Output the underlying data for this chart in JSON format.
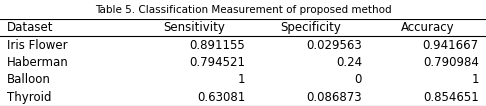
{
  "title": "Table 5. Classification Measurement of proposed method",
  "columns": [
    "Dataset",
    "Sensitivity",
    "Specificity",
    "Accuracy"
  ],
  "rows": [
    [
      "Iris Flower",
      "0.891155",
      "0.029563",
      "0.941667"
    ],
    [
      "Haberman",
      "0.794521",
      "0.24",
      "0.790984"
    ],
    [
      "Balloon",
      "1",
      "0",
      "1"
    ],
    [
      "Thyroid",
      "0.63081",
      "0.086873",
      "0.854651"
    ]
  ],
  "bg_color": "#ffffff",
  "text_color": "#000000",
  "title_fontsize": 7.5,
  "header_fontsize": 8.5,
  "cell_fontsize": 8.5,
  "fig_width": 4.86,
  "fig_height": 1.06,
  "dpi": 100
}
